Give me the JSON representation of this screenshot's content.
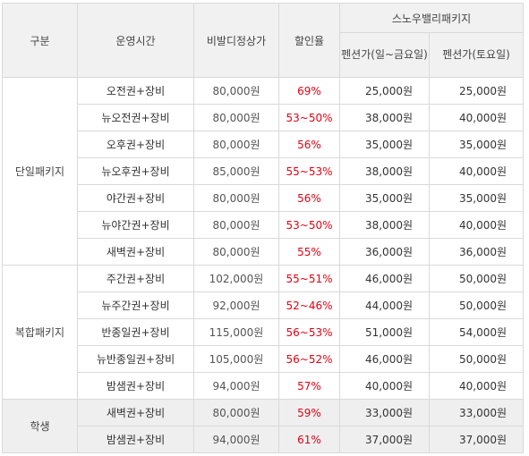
{
  "colors": {
    "rate": "#e60012",
    "header_bg": "#f1f1f1",
    "student_bg": "#efefef",
    "border": "#d9d9d9"
  },
  "header": {
    "category": "구분",
    "hours": "운영시간",
    "list_price": "비발디정상가",
    "discount": "할인율",
    "package": "스노우밸리패키지",
    "weekday": "펜션가(일~금요일)",
    "saturday": "펜션가(토요일)"
  },
  "groups": [
    {
      "label": "단일패키지",
      "rows": [
        {
          "name": "오전권+장비",
          "price": "80,000원",
          "rate": "69%",
          "weekday": "25,000원",
          "saturday": "25,000원"
        },
        {
          "name": "뉴오전권+장비",
          "price": "80,000원",
          "rate": "53~50%",
          "weekday": "38,000원",
          "saturday": "40,000원"
        },
        {
          "name": "오후권+장비",
          "price": "80,000원",
          "rate": "56%",
          "weekday": "35,000원",
          "saturday": "35,000원"
        },
        {
          "name": "뉴오후권+장비",
          "price": "85,000원",
          "rate": "55~53%",
          "weekday": "38,000원",
          "saturday": "40,000원"
        },
        {
          "name": "야간권+장비",
          "price": "80,000원",
          "rate": "56%",
          "weekday": "35,000원",
          "saturday": "35,000원"
        },
        {
          "name": "뉴야간권+장비",
          "price": "80,000원",
          "rate": "53~50%",
          "weekday": "38,000원",
          "saturday": "40,000원"
        },
        {
          "name": "새벽권+장비",
          "price": "80,000원",
          "rate": "55%",
          "weekday": "36,000원",
          "saturday": "36,000원"
        }
      ]
    },
    {
      "label": "복합패키지",
      "rows": [
        {
          "name": "주간권+장비",
          "price": "102,000원",
          "rate": "55~51%",
          "weekday": "46,000원",
          "saturday": "50,000원"
        },
        {
          "name": "뉴주간권+장비",
          "price": "92,000원",
          "rate": "52~46%",
          "weekday": "44,000원",
          "saturday": "50,000원"
        },
        {
          "name": "반종일권+장비",
          "price": "115,000원",
          "rate": "56~53%",
          "weekday": "51,000원",
          "saturday": "54,000원"
        },
        {
          "name": "뉴반종일권+장비",
          "price": "105,000원",
          "rate": "56~52%",
          "weekday": "46,000원",
          "saturday": "50,000원"
        },
        {
          "name": "밤샘권+장비",
          "price": "94,000원",
          "rate": "57%",
          "weekday": "40,000원",
          "saturday": "40,000원"
        }
      ]
    },
    {
      "label": "학생",
      "rows": [
        {
          "name": "새벽권+장비",
          "price": "80,000원",
          "rate": "59%",
          "weekday": "33,000원",
          "saturday": "33,000원"
        },
        {
          "name": "밤샘권+장비",
          "price": "94,000원",
          "rate": "61%",
          "weekday": "37,000원",
          "saturday": "37,000원"
        }
      ]
    }
  ]
}
